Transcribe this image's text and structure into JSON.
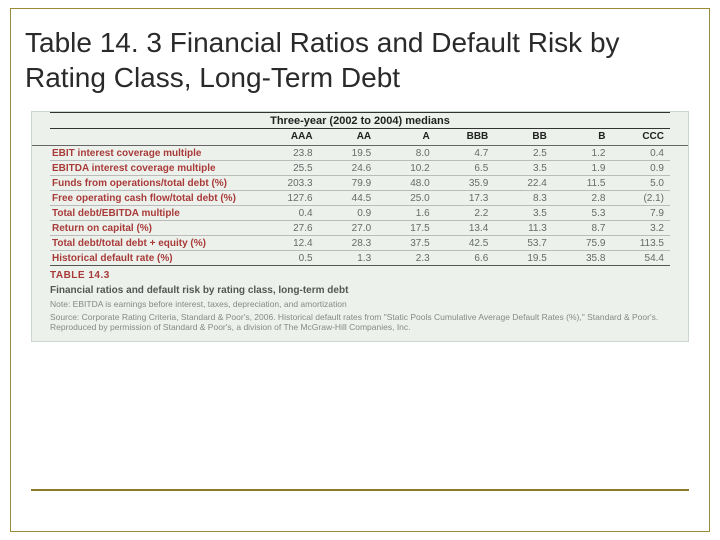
{
  "slide": {
    "title": "Table 14. 3 Financial Ratios and Default Risk by Rating Class, Long-Term Debt"
  },
  "table": {
    "type": "table",
    "header_band": "Three-year (2002 to 2004) medians",
    "columns": [
      "",
      "AAA",
      "AA",
      "A",
      "BBB",
      "BB",
      "B",
      "CCC"
    ],
    "rows": [
      {
        "label": "EBIT interest coverage multiple",
        "values": [
          "23.8",
          "19.5",
          "8.0",
          "4.7",
          "2.5",
          "1.2",
          "0.4"
        ]
      },
      {
        "label": "EBITDA interest coverage multiple",
        "values": [
          "25.5",
          "24.6",
          "10.2",
          "6.5",
          "3.5",
          "1.9",
          "0.9"
        ]
      },
      {
        "label": "Funds from operations/total debt (%)",
        "values": [
          "203.3",
          "79.9",
          "48.0",
          "35.9",
          "22.4",
          "11.5",
          "5.0"
        ]
      },
      {
        "label": "Free operating cash flow/total debt (%)",
        "values": [
          "127.6",
          "44.5",
          "25.0",
          "17.3",
          "8.3",
          "2.8",
          "(2.1)"
        ]
      },
      {
        "label": "Total debt/EBITDA multiple",
        "values": [
          "0.4",
          "0.9",
          "1.6",
          "2.2",
          "3.5",
          "5.3",
          "7.9"
        ]
      },
      {
        "label": "Return on capital (%)",
        "values": [
          "27.6",
          "27.0",
          "17.5",
          "13.4",
          "11.3",
          "8.7",
          "3.2"
        ]
      },
      {
        "label": "Total debt/total debt + equity (%)",
        "values": [
          "12.4",
          "28.3",
          "37.5",
          "42.5",
          "53.7",
          "75.9",
          "113.5"
        ]
      },
      {
        "label": "Historical default rate (%)",
        "values": [
          "0.5",
          "1.3",
          "2.3",
          "6.6",
          "19.5",
          "35.8",
          "54.4"
        ]
      }
    ],
    "table_label": "TABLE 14.3",
    "caption": "Financial ratios and default risk by rating class, long-term debt",
    "note": "Note: EBITDA is earnings before interest, taxes, depreciation, and amortization",
    "source": "Source: Corporate Rating Criteria, Standard & Poor's, 2006. Historical default rates from \"Static Pools Cumulative Average Default Rates (%),\" Standard & Poor's. Reproduced by permission of Standard & Poor's, a division of The McGraw-Hill Companies, Inc.",
    "colors": {
      "page_bg": "#ffffff",
      "frame_border": "#9a8a3a",
      "rule": "#8a7a2a",
      "figure_bg": "#ecf2eb",
      "row_label": "#a93a3a",
      "text": "#666a6a",
      "header_text": "#222222"
    },
    "fontsize": {
      "title": 28,
      "header": 10,
      "body": 10,
      "fine": 8.5
    }
  }
}
